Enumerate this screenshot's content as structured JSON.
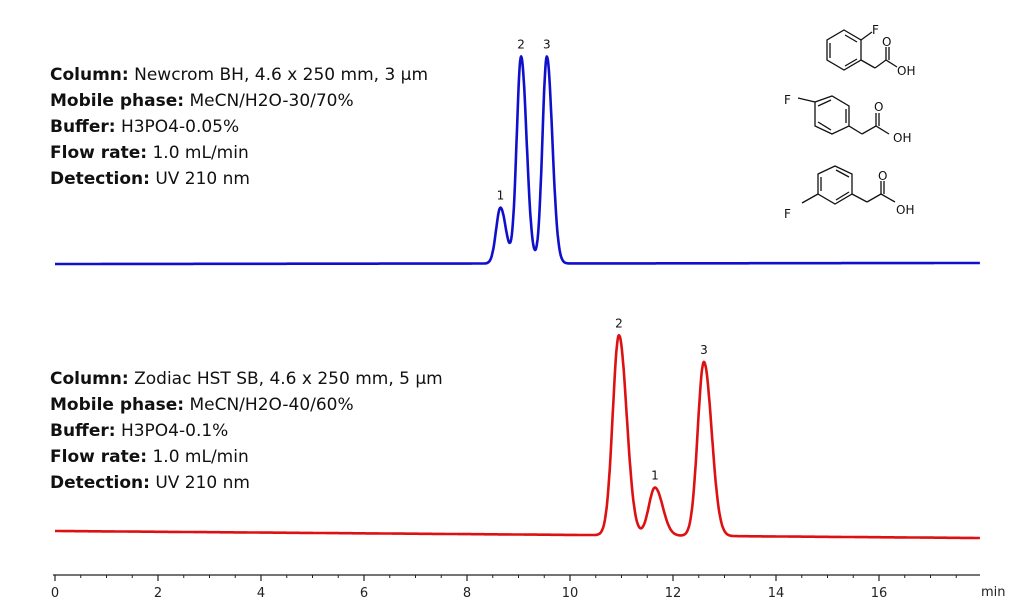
{
  "chart_data": [
    {
      "type": "line",
      "name_label": "Newcrom BH",
      "conditions": [
        {
          "label": "Column:",
          "value": "Newcrom BH, 4.6 x 250 mm, 3 µm"
        },
        {
          "label": "Mobile phase:",
          "value": "MeCN/H2O-30/70%"
        },
        {
          "label": "Buffer:",
          "value": "H3PO4-0.05%"
        },
        {
          "label": "Flow rate:",
          "value": "1.0 mL/min"
        },
        {
          "label": "Detection:",
          "value": "UV 210 nm"
        }
      ],
      "color": "#1010cc",
      "peaks": [
        {
          "label": "1",
          "time": 8.65,
          "height": 0.27
        },
        {
          "label": "2",
          "time": 9.05,
          "height": 1.0
        },
        {
          "label": "3",
          "time": 9.55,
          "height": 1.0
        }
      ],
      "xlim": [
        0,
        18.2
      ]
    },
    {
      "type": "line",
      "name_label": "Zodiac HST SB",
      "conditions": [
        {
          "label": "Column:",
          "value": "Zodiac HST SB, 4.6 x 250 mm, 5 µm"
        },
        {
          "label": "Mobile phase:",
          "value": "MeCN/H2O-40/60%"
        },
        {
          "label": "Buffer:",
          "value": "H3PO4-0.1%"
        },
        {
          "label": "Flow rate:",
          "value": "1.0 mL/min"
        },
        {
          "label": "Detection:",
          "value": "UV 210 nm"
        }
      ],
      "color": "#dd1111",
      "peaks": [
        {
          "label": "2",
          "time": 10.95,
          "height": 1.0
        },
        {
          "label": "1",
          "time": 11.65,
          "height": 0.24
        },
        {
          "label": "3",
          "time": 12.6,
          "height": 0.87
        }
      ],
      "xlim": [
        0,
        18.2
      ]
    }
  ],
  "x_axis": {
    "ticks": [
      "0",
      "2",
      "4",
      "6",
      "8",
      "10",
      "12",
      "14",
      "16"
    ],
    "unit": "min"
  },
  "structures": [
    {
      "name": "2-fluorophenylacetic-acid",
      "labels": [
        "F",
        "O",
        "OH"
      ]
    },
    {
      "name": "4-fluorophenylacetic-acid",
      "labels": [
        "F",
        "O",
        "OH"
      ]
    },
    {
      "name": "3-fluorophenylacetic-acid",
      "labels": [
        "F",
        "O",
        "OH"
      ]
    }
  ]
}
